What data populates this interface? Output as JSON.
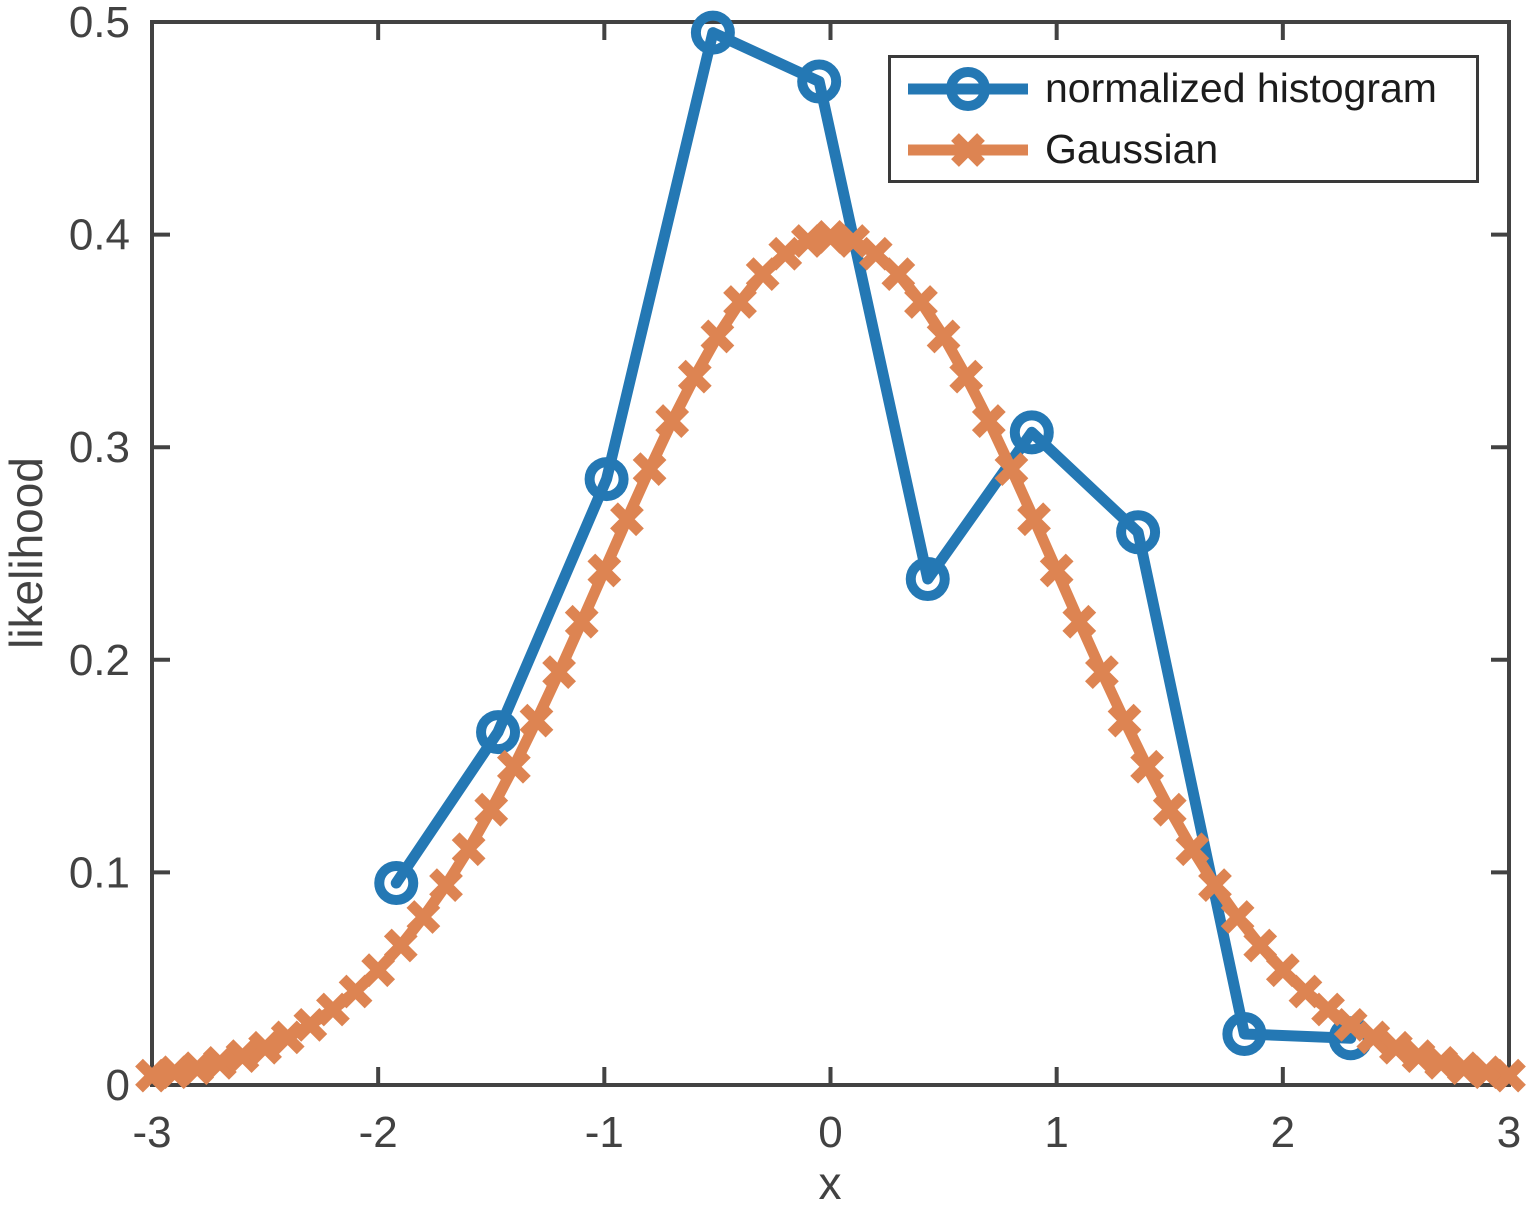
{
  "figure": {
    "background": "#ffffff",
    "axis_color": "#424242",
    "tick_label_color": "#424242",
    "legend_text_color": "#1c1c1c"
  },
  "chart_data": {
    "type": "line",
    "title": "",
    "xlabel": "x",
    "ylabel": "likelihood",
    "xlim": [
      -3,
      3
    ],
    "ylim": [
      0,
      0.5
    ],
    "xticks": [
      -3,
      -2,
      -1,
      0,
      1,
      2,
      3
    ],
    "xtick_labels": [
      "-3",
      "-2",
      "-1",
      "0",
      "1",
      "2",
      "3"
    ],
    "yticks": [
      0,
      0.1,
      0.2,
      0.3,
      0.4,
      0.5
    ],
    "ytick_labels": [
      "0",
      "0.1",
      "0.2",
      "0.3",
      "0.4",
      "0.5"
    ],
    "grid": false,
    "legend_position": "top-right-inside",
    "series": [
      {
        "name": "normalized histogram",
        "id": "histogram",
        "marker": "circle",
        "color": "#2478B4",
        "x": [
          -1.92,
          -1.47,
          -0.99,
          -0.52,
          -0.05,
          0.43,
          0.89,
          1.36,
          1.83,
          2.3
        ],
        "y": [
          0.095,
          0.166,
          0.285,
          0.495,
          0.472,
          0.238,
          0.307,
          0.26,
          0.024,
          0.022
        ]
      },
      {
        "name": "Gaussian",
        "id": "gaussian",
        "marker": "x",
        "color": "#DD8452",
        "x": [
          -3.0,
          -2.9,
          -2.8,
          -2.7,
          -2.6,
          -2.5,
          -2.4,
          -2.3,
          -2.2,
          -2.1,
          -2.0,
          -1.9,
          -1.8,
          -1.7,
          -1.6,
          -1.5,
          -1.4,
          -1.3,
          -1.2,
          -1.1,
          -1.0,
          -0.9,
          -0.8,
          -0.7,
          -0.6,
          -0.5,
          -0.4,
          -0.3,
          -0.2,
          -0.1,
          0.0,
          0.1,
          0.2,
          0.3,
          0.4,
          0.5,
          0.6,
          0.7,
          0.8,
          0.9,
          1.0,
          1.1,
          1.2,
          1.3,
          1.4,
          1.5,
          1.6,
          1.7,
          1.8,
          1.9,
          2.0,
          2.1,
          2.2,
          2.3,
          2.4,
          2.5,
          2.6,
          2.7,
          2.8,
          2.9,
          3.0
        ],
        "y": [
          0.0044,
          0.006,
          0.0079,
          0.0104,
          0.0136,
          0.0175,
          0.0224,
          0.0283,
          0.0355,
          0.044,
          0.054,
          0.0656,
          0.079,
          0.094,
          0.1109,
          0.1295,
          0.1497,
          0.1714,
          0.1942,
          0.2179,
          0.242,
          0.2661,
          0.2897,
          0.3123,
          0.3332,
          0.3521,
          0.3683,
          0.3814,
          0.391,
          0.397,
          0.3989,
          0.397,
          0.391,
          0.3814,
          0.3683,
          0.3521,
          0.3332,
          0.3123,
          0.2897,
          0.2661,
          0.242,
          0.2179,
          0.1942,
          0.1714,
          0.1497,
          0.1295,
          0.1109,
          0.094,
          0.079,
          0.0656,
          0.054,
          0.044,
          0.0355,
          0.0283,
          0.0224,
          0.0175,
          0.0136,
          0.0104,
          0.0079,
          0.006,
          0.0044
        ]
      }
    ]
  }
}
